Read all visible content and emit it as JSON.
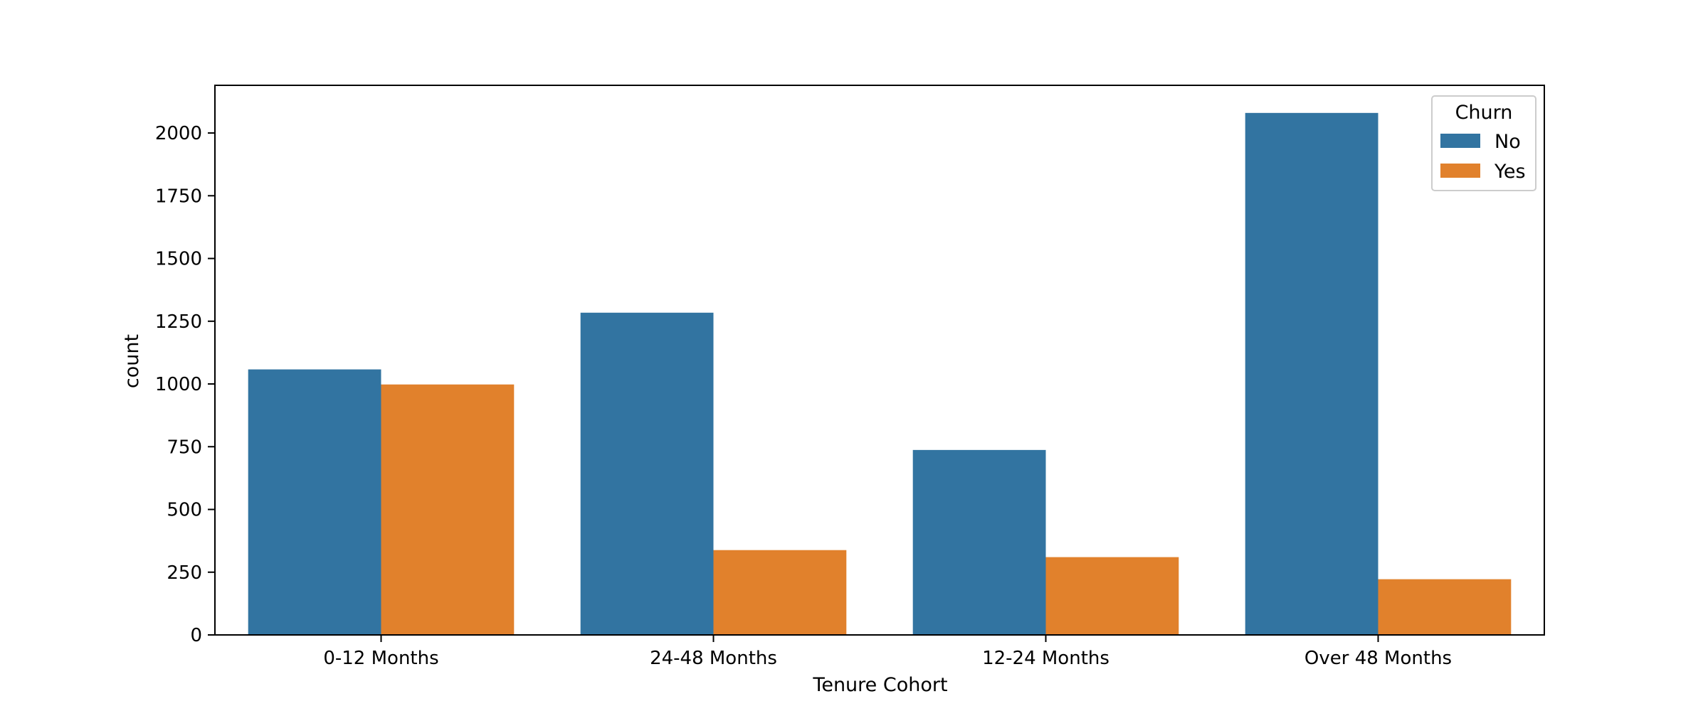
{
  "chart_data": {
    "type": "bar",
    "title": "",
    "xlabel": "Tenure Cohort",
    "ylabel": "count",
    "categories": [
      "0-12 Months",
      "24-48 Months",
      "12-24 Months",
      "Over 48 Months"
    ],
    "series": [
      {
        "name": "No",
        "color": "#3274a1",
        "values": [
          1058,
          1284,
          737,
          2080
        ]
      },
      {
        "name": "Yes",
        "color": "#e1812c",
        "values": [
          998,
          338,
          310,
          222
        ]
      }
    ],
    "ylim": [
      0,
      2190
    ],
    "yticks": [
      0,
      250,
      500,
      750,
      1000,
      1250,
      1500,
      1750,
      2000
    ],
    "grid": false,
    "legend": {
      "title": "Churn",
      "position": "top-right"
    }
  }
}
